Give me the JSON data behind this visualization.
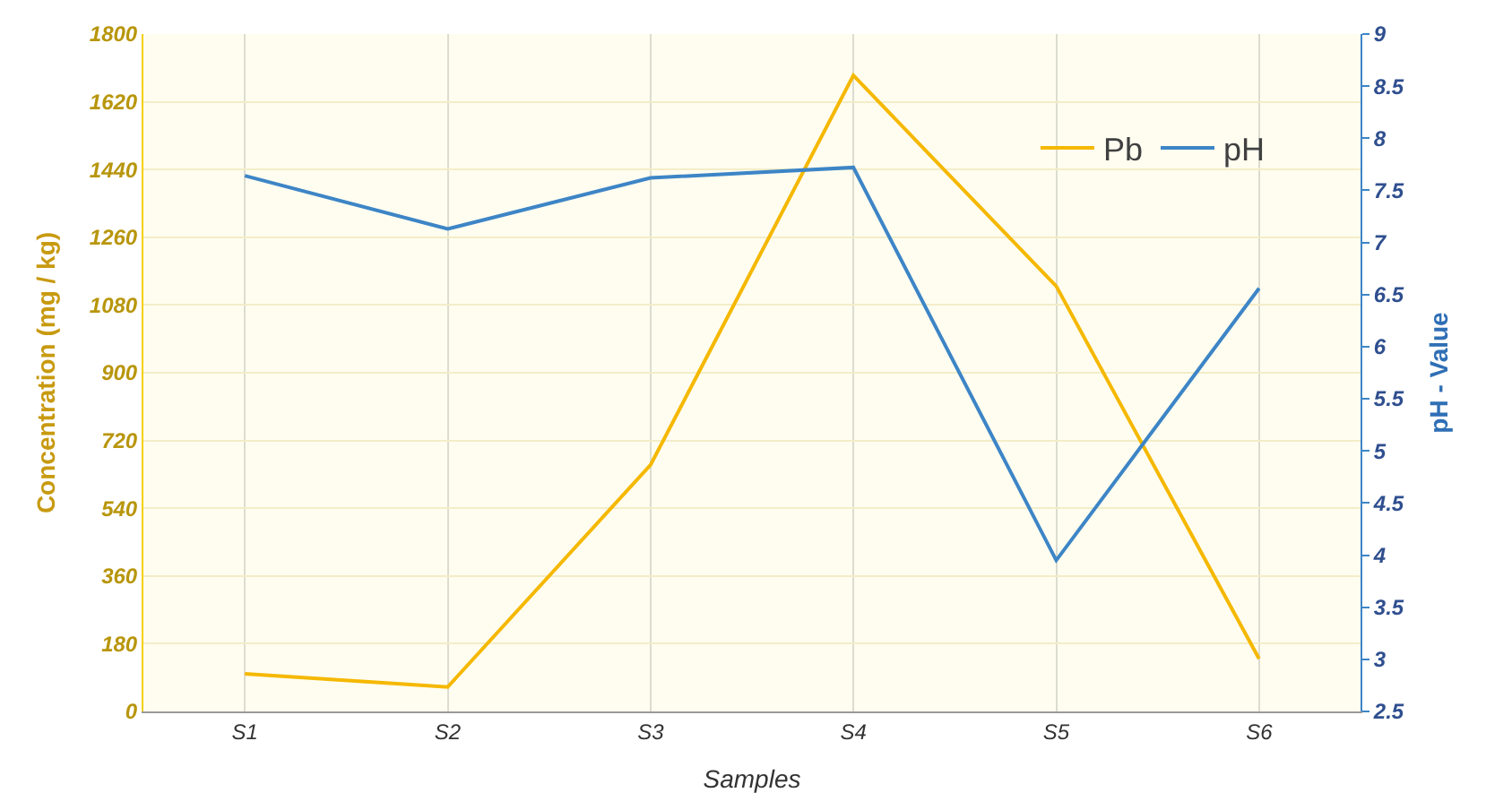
{
  "chart_data": {
    "type": "line",
    "xlabel": "Samples",
    "ylabel": "Concentration (mg / kg)",
    "y2label": "pH - Value",
    "categories": [
      "S1",
      "S2",
      "S3",
      "S4",
      "S5",
      "S6"
    ],
    "series": [
      {
        "name": "Pb",
        "color": "#f5b800",
        "values": [
          100,
          65,
          655,
          1690,
          1130,
          140
        ]
      },
      {
        "name": "pH",
        "color": "#3d85c6",
        "axis": "y2",
        "values": [
          7.64,
          7.13,
          7.62,
          7.72,
          3.95,
          6.56
        ]
      }
    ],
    "ylim": [
      0,
      1800
    ],
    "yticks": [
      0,
      180,
      360,
      540,
      720,
      900,
      1080,
      1260,
      1440,
      1620,
      1800
    ],
    "y2lim": [
      2.5,
      9
    ],
    "y2ticks": [
      2.5,
      3,
      3.5,
      4,
      4.5,
      5,
      5.5,
      6,
      6.5,
      7,
      7.5,
      8,
      8.5,
      9
    ],
    "grid": true,
    "legend": "top right",
    "marker": "none",
    "line_style": "solid"
  }
}
